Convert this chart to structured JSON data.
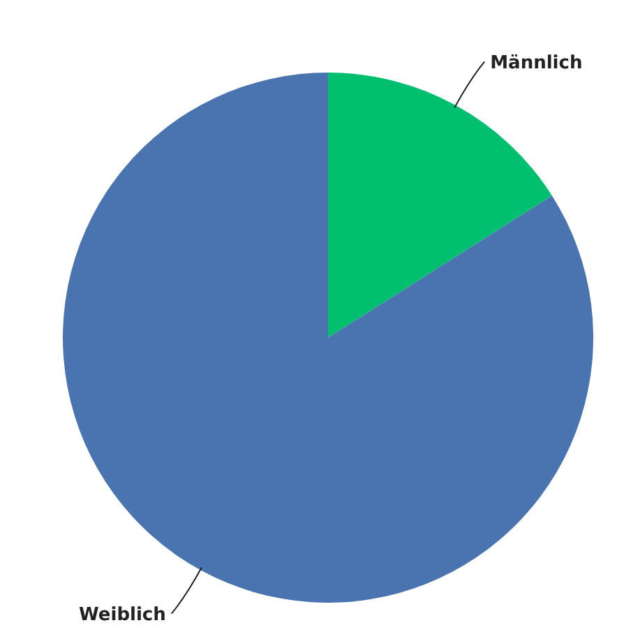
{
  "chart_data": {
    "type": "pie",
    "categories": [
      "Männlich",
      "Weiblich"
    ],
    "values": [
      16,
      84
    ],
    "colors": [
      "#00bf6f",
      "#4a74b0"
    ]
  }
}
